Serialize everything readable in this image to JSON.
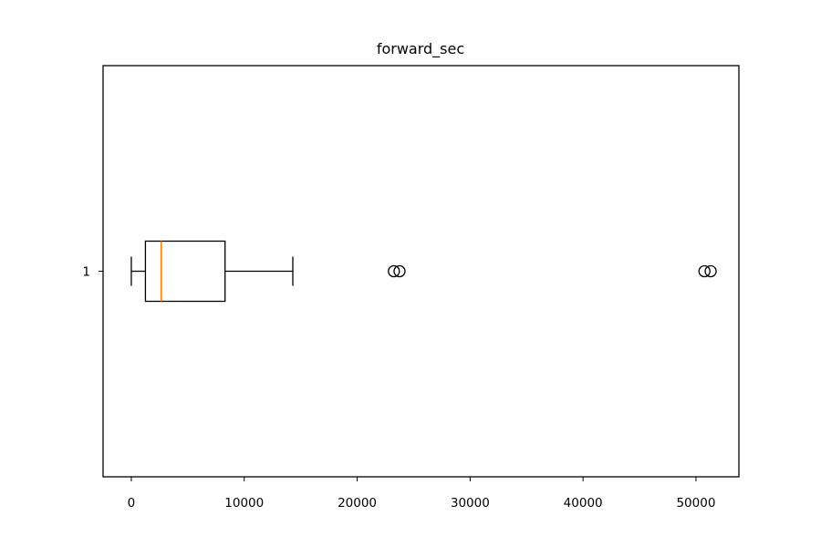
{
  "chart_data": {
    "type": "boxplot",
    "orientation": "horizontal",
    "title": "forward_sec",
    "xlabel": "",
    "ylabel": "",
    "xlim": [
      -2500,
      53800
    ],
    "xticks": [
      0,
      10000,
      20000,
      30000,
      40000,
      50000
    ],
    "xtick_labels": [
      "0",
      "10000",
      "20000",
      "30000",
      "40000",
      "50000"
    ],
    "categories": [
      "1"
    ],
    "boxes": [
      {
        "category": "1",
        "whisker_low": 0,
        "q1": 1250,
        "median": 2650,
        "q3": 8300,
        "whisker_high": 14300,
        "outliers": [
          23250,
          23750,
          50750,
          51300
        ]
      }
    ],
    "grid": false,
    "colors": {
      "box": "#000000",
      "median": "#ff7f0e",
      "outlier": "#000000"
    }
  }
}
